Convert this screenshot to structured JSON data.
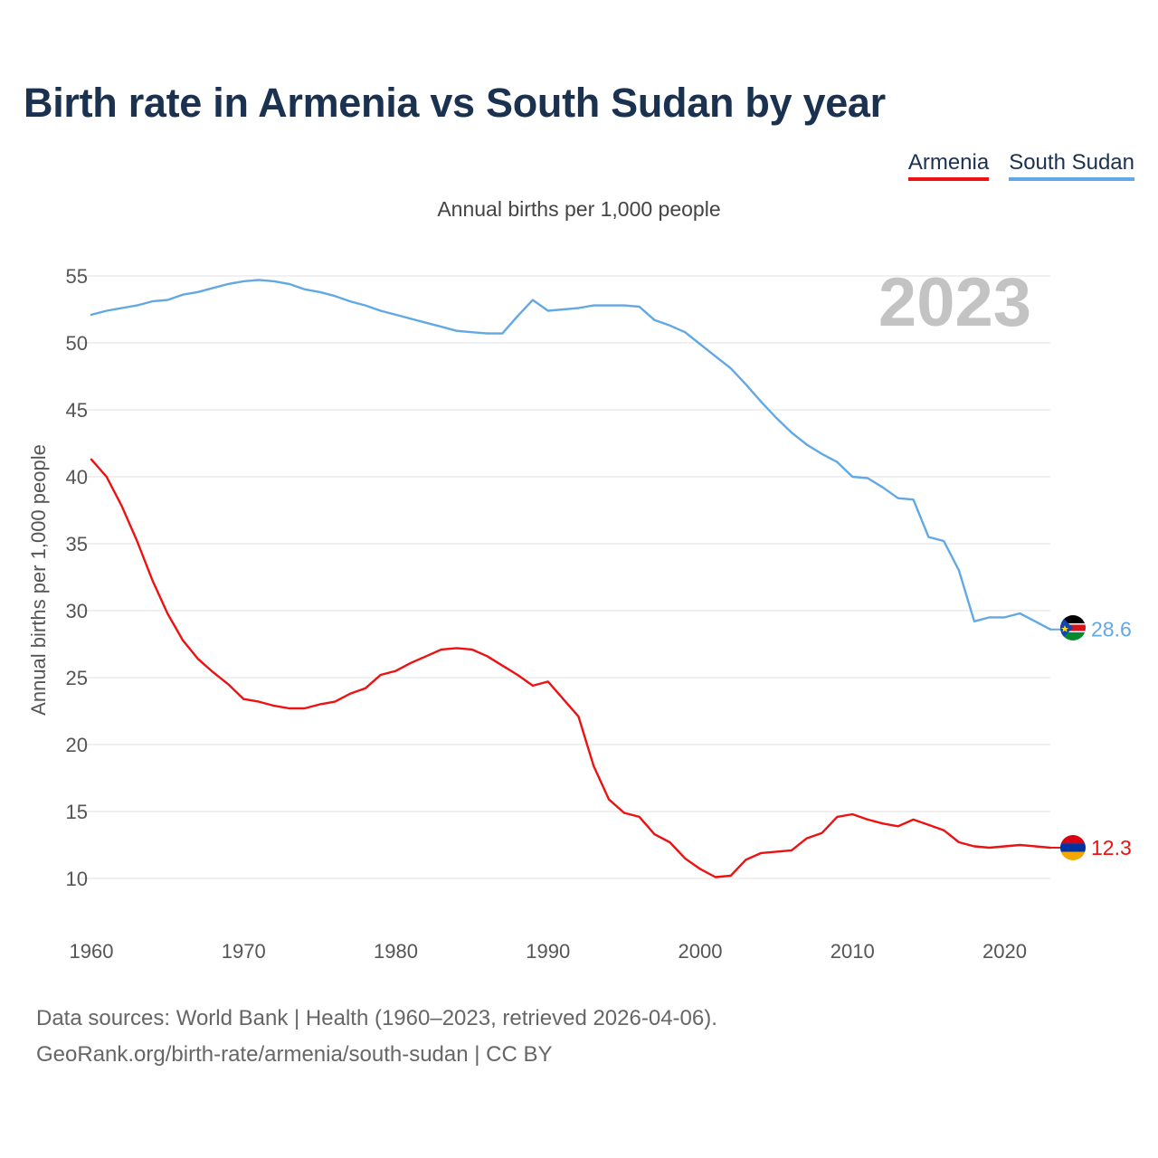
{
  "title": "Birth rate in Armenia vs South Sudan by year",
  "subtitle": "Annual births per 1,000 people",
  "year_label": "2023",
  "legend": [
    {
      "name": "Armenia",
      "color": "#ee1111"
    },
    {
      "name": "South Sudan",
      "color": "#62a8e5"
    }
  ],
  "footer": {
    "line1": "Data sources: World Bank | Health (1960–2023, retrieved 2026-04-06).",
    "line2": "GeoRank.org/birth-rate/armenia/south-sudan | CC BY"
  },
  "chart_data": {
    "type": "line",
    "title": "Birth rate in Armenia vs South Sudan by year",
    "ylabel": "Annual births per 1,000 people",
    "xlabel": "",
    "xlim": [
      1960,
      2023
    ],
    "ylim": [
      7,
      57
    ],
    "yticks": [
      10,
      15,
      20,
      25,
      30,
      35,
      40,
      45,
      50,
      55
    ],
    "xticks": [
      1960,
      1970,
      1980,
      1990,
      2000,
      2010,
      2020
    ],
    "grid": true,
    "legend_position": "top-right",
    "end_labels": [
      {
        "series": "South Sudan",
        "value": "28.6",
        "flag": "south-sudan"
      },
      {
        "series": "Armenia",
        "value": "12.3",
        "flag": "armenia"
      }
    ],
    "series": [
      {
        "name": "South Sudan",
        "color": "#62a8e5",
        "x": [
          1960,
          1961,
          1962,
          1963,
          1964,
          1965,
          1966,
          1967,
          1968,
          1969,
          1970,
          1971,
          1972,
          1973,
          1974,
          1975,
          1976,
          1977,
          1978,
          1979,
          1980,
          1981,
          1982,
          1983,
          1984,
          1985,
          1986,
          1987,
          1988,
          1989,
          1990,
          1991,
          1992,
          1993,
          1994,
          1995,
          1996,
          1997,
          1998,
          1999,
          2000,
          2001,
          2002,
          2003,
          2004,
          2005,
          2006,
          2007,
          2008,
          2009,
          2010,
          2011,
          2012,
          2013,
          2014,
          2015,
          2016,
          2017,
          2018,
          2019,
          2020,
          2021,
          2022,
          2023
        ],
        "values": [
          52.1,
          52.4,
          52.6,
          52.8,
          53.1,
          53.2,
          53.6,
          53.8,
          54.1,
          54.4,
          54.6,
          54.7,
          54.6,
          54.4,
          54.0,
          53.8,
          53.5,
          53.1,
          52.8,
          52.4,
          52.1,
          51.8,
          51.5,
          51.2,
          50.9,
          50.8,
          50.7,
          50.7,
          52.0,
          53.2,
          52.4,
          52.5,
          52.6,
          52.8,
          52.8,
          52.8,
          52.7,
          51.7,
          51.3,
          50.8,
          49.9,
          49.0,
          48.1,
          46.9,
          45.6,
          44.4,
          43.3,
          42.4,
          41.7,
          41.1,
          40.0,
          39.9,
          39.2,
          38.4,
          38.3,
          35.5,
          35.2,
          33.0,
          29.2,
          29.5,
          29.5,
          29.8,
          29.2,
          28.6
        ]
      },
      {
        "name": "Armenia",
        "color": "#ee1111",
        "x": [
          1960,
          1961,
          1962,
          1963,
          1964,
          1965,
          1966,
          1967,
          1968,
          1969,
          1970,
          1971,
          1972,
          1973,
          1974,
          1975,
          1976,
          1977,
          1978,
          1979,
          1980,
          1981,
          1982,
          1983,
          1984,
          1985,
          1986,
          1987,
          1988,
          1989,
          1990,
          1991,
          1992,
          1993,
          1994,
          1995,
          1996,
          1997,
          1998,
          1999,
          2000,
          2001,
          2002,
          2003,
          2004,
          2005,
          2006,
          2007,
          2008,
          2009,
          2010,
          2011,
          2012,
          2013,
          2014,
          2015,
          2016,
          2017,
          2018,
          2019,
          2020,
          2021,
          2022,
          2023
        ],
        "values": [
          41.3,
          40.0,
          37.8,
          35.2,
          32.3,
          29.8,
          27.8,
          26.4,
          25.4,
          24.5,
          23.4,
          23.2,
          22.9,
          22.7,
          22.7,
          23.0,
          23.2,
          23.8,
          24.2,
          25.2,
          25.5,
          26.1,
          26.6,
          27.1,
          27.2,
          27.1,
          26.6,
          25.9,
          25.2,
          24.4,
          24.7,
          23.4,
          22.1,
          18.4,
          15.9,
          14.9,
          14.6,
          13.3,
          12.7,
          11.5,
          10.7,
          10.1,
          10.2,
          11.4,
          11.9,
          12.0,
          12.1,
          13.0,
          13.4,
          14.6,
          14.8,
          14.4,
          14.1,
          13.9,
          14.4,
          14.0,
          13.6,
          12.7,
          12.4,
          12.3,
          12.4,
          12.5,
          12.4,
          12.3
        ]
      }
    ]
  }
}
